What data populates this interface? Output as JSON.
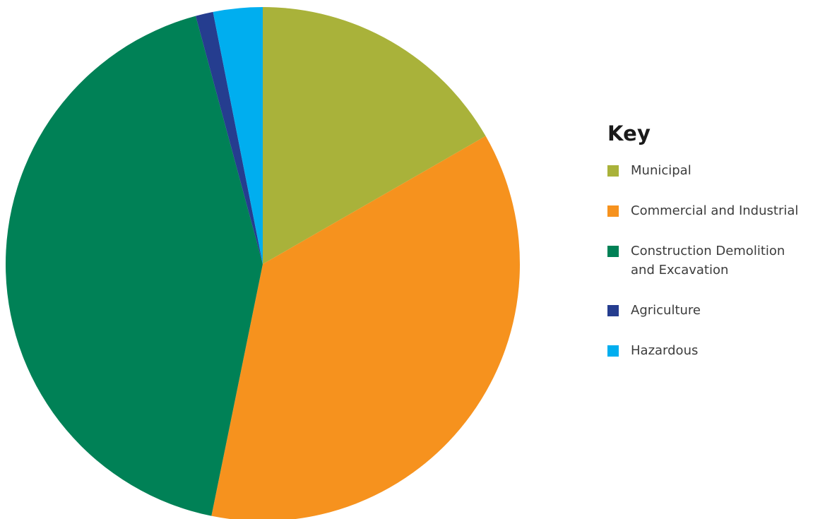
{
  "chart_data": {
    "type": "pie",
    "legend_title": "Key",
    "legend_position": "right",
    "series": [
      {
        "name": "Municipal",
        "value": 16.7,
        "color": "#A9B23A"
      },
      {
        "name": "Commercial and Industrial",
        "value": 36.5,
        "color": "#F6921E"
      },
      {
        "name": "Construction Demolition\n and Excavation",
        "value": 42.6,
        "color": "#008156"
      },
      {
        "name": "Agriculture",
        "value": 1.1,
        "color": "#253D8F"
      },
      {
        "name": "Hazardous",
        "value": 3.1,
        "color": "#00AEEF"
      }
    ]
  }
}
